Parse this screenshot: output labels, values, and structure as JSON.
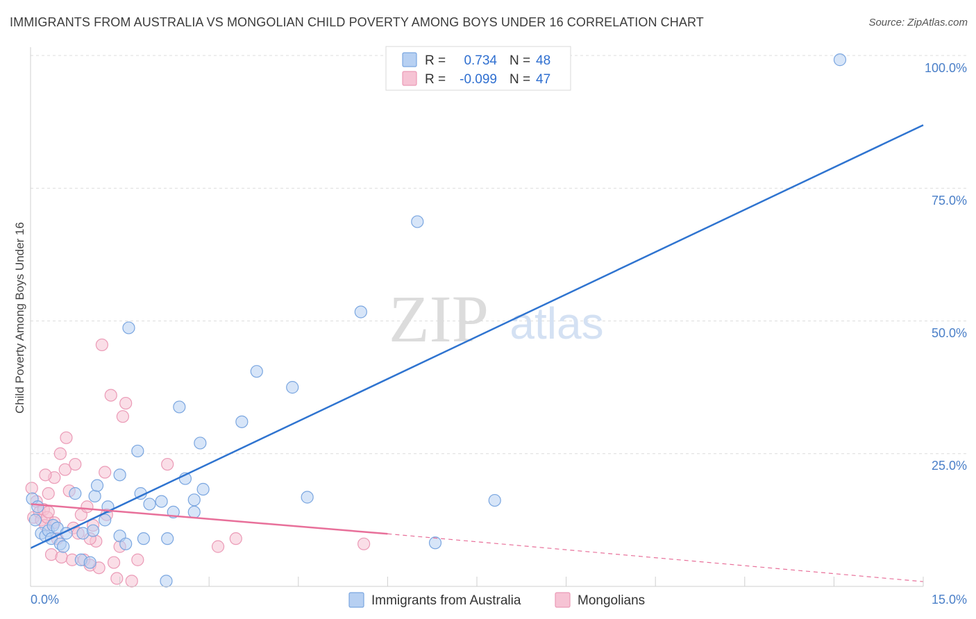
{
  "title": "IMMIGRANTS FROM AUSTRALIA VS MONGOLIAN CHILD POVERTY AMONG BOYS UNDER 16 CORRELATION CHART",
  "source": "Source: ZipAtlas.com",
  "colors": {
    "blue": "#2f74d0",
    "blue_fill": "#b7d0f2",
    "blue_stroke": "#7aa6e0",
    "pink": "#e8709a",
    "pink_fill": "#f6c3d4",
    "pink_stroke": "#eb9ab6",
    "grid": "#dcdcdc",
    "tick": "#4a7fc8"
  },
  "legend": {
    "rows": [
      {
        "r_label": "R =",
        "r_value": "0.734",
        "n_label": "N =",
        "n_value": "48"
      },
      {
        "r_label": "R =",
        "r_value": "-0.099",
        "n_label": "N =",
        "n_value": "47"
      }
    ]
  },
  "bottom_legend": [
    "Immigrants from Australia",
    "Mongolians"
  ],
  "chart_data": {
    "type": "scatter",
    "title": "IMMIGRANTS FROM AUSTRALIA VS MONGOLIAN CHILD POVERTY AMONG BOYS UNDER 16 CORRELATION CHART",
    "ylabel": "Child Poverty Among Boys Under 16",
    "xlabel": "",
    "xlim": [
      0,
      15
    ],
    "ylim": [
      0,
      100
    ],
    "x_tick_labels": [
      "0.0%",
      "15.0%"
    ],
    "y_tick_values": [
      25,
      50,
      75,
      100
    ],
    "y_tick_labels": [
      "25.0%",
      "50.0%",
      "75.0%",
      "100.0%"
    ],
    "watermark": {
      "main": "ZIP",
      "sub": "atlas"
    },
    "series": [
      {
        "name": "Immigrants from Australia",
        "r": 0.734,
        "n": 48,
        "trend": {
          "x": [
            0.0,
            15.0
          ],
          "y": [
            7.2,
            86.9
          ]
        },
        "points": [
          [
            0.03,
            16.5
          ],
          [
            0.12,
            15.0
          ],
          [
            0.18,
            10.0
          ],
          [
            0.25,
            9.5
          ],
          [
            0.3,
            10.5
          ],
          [
            0.35,
            9.0
          ],
          [
            0.38,
            11.5
          ],
          [
            0.45,
            11.0
          ],
          [
            0.5,
            8.0
          ],
          [
            0.55,
            7.5
          ],
          [
            0.6,
            10.0
          ],
          [
            0.75,
            17.5
          ],
          [
            0.85,
            5.0
          ],
          [
            0.88,
            10.0
          ],
          [
            1.0,
            4.5
          ],
          [
            1.05,
            10.5
          ],
          [
            1.08,
            17.0
          ],
          [
            1.12,
            19.0
          ],
          [
            1.25,
            12.5
          ],
          [
            1.3,
            15.0
          ],
          [
            1.5,
            21.0
          ],
          [
            1.5,
            9.5
          ],
          [
            1.6,
            8.0
          ],
          [
            1.65,
            48.7
          ],
          [
            1.8,
            25.5
          ],
          [
            1.85,
            17.5
          ],
          [
            1.9,
            9.0
          ],
          [
            2.0,
            15.5
          ],
          [
            2.2,
            16.0
          ],
          [
            2.28,
            1.0
          ],
          [
            2.3,
            9.0
          ],
          [
            2.4,
            14.0
          ],
          [
            2.5,
            33.8
          ],
          [
            2.6,
            20.3
          ],
          [
            2.75,
            14.0
          ],
          [
            2.75,
            16.3
          ],
          [
            2.85,
            27.0
          ],
          [
            2.9,
            18.3
          ],
          [
            3.55,
            31.0
          ],
          [
            3.8,
            40.5
          ],
          [
            4.4,
            37.5
          ],
          [
            4.65,
            16.8
          ],
          [
            5.55,
            51.7
          ],
          [
            6.5,
            68.7
          ],
          [
            6.8,
            8.2
          ],
          [
            7.8,
            16.2
          ],
          [
            13.6,
            99.2
          ],
          [
            0.08,
            12.5
          ]
        ]
      },
      {
        "name": "Mongolians",
        "r": -0.099,
        "n": 47,
        "trend": {
          "x": [
            0.0,
            6.0
          ],
          "y": [
            15.5,
            9.9
          ]
        },
        "trend_dashed": {
          "x": [
            6.0,
            15.0
          ],
          "y": [
            9.9,
            0.9
          ]
        },
        "points": [
          [
            0.02,
            18.5
          ],
          [
            0.05,
            13.0
          ],
          [
            0.1,
            16.0
          ],
          [
            0.15,
            14.0
          ],
          [
            0.18,
            12.5
          ],
          [
            0.22,
            14.5
          ],
          [
            0.25,
            11.5
          ],
          [
            0.28,
            13.0
          ],
          [
            0.3,
            17.5
          ],
          [
            0.35,
            6.0
          ],
          [
            0.4,
            20.5
          ],
          [
            0.45,
            9.0
          ],
          [
            0.5,
            25.0
          ],
          [
            0.52,
            5.5
          ],
          [
            0.58,
            22.0
          ],
          [
            0.6,
            28.0
          ],
          [
            0.65,
            18.0
          ],
          [
            0.72,
            11.0
          ],
          [
            0.75,
            23.0
          ],
          [
            0.8,
            10.0
          ],
          [
            0.85,
            13.5
          ],
          [
            0.9,
            5.0
          ],
          [
            0.95,
            15.0
          ],
          [
            1.0,
            4.0
          ],
          [
            1.05,
            11.5
          ],
          [
            1.1,
            8.5
          ],
          [
            1.15,
            3.5
          ],
          [
            1.2,
            45.5
          ],
          [
            1.28,
            13.5
          ],
          [
            1.35,
            36.0
          ],
          [
            1.25,
            21.5
          ],
          [
            1.4,
            4.5
          ],
          [
            1.45,
            1.5
          ],
          [
            1.5,
            7.5
          ],
          [
            1.55,
            32.0
          ],
          [
            1.6,
            34.5
          ],
          [
            1.7,
            1.0
          ],
          [
            1.8,
            5.0
          ],
          [
            2.3,
            23.0
          ],
          [
            3.15,
            7.5
          ],
          [
            3.45,
            9.0
          ],
          [
            5.6,
            8.0
          ],
          [
            0.7,
            5.0
          ],
          [
            0.25,
            21.0
          ],
          [
            0.4,
            12.0
          ],
          [
            1.0,
            9.0
          ],
          [
            0.3,
            14.0
          ]
        ]
      }
    ]
  }
}
